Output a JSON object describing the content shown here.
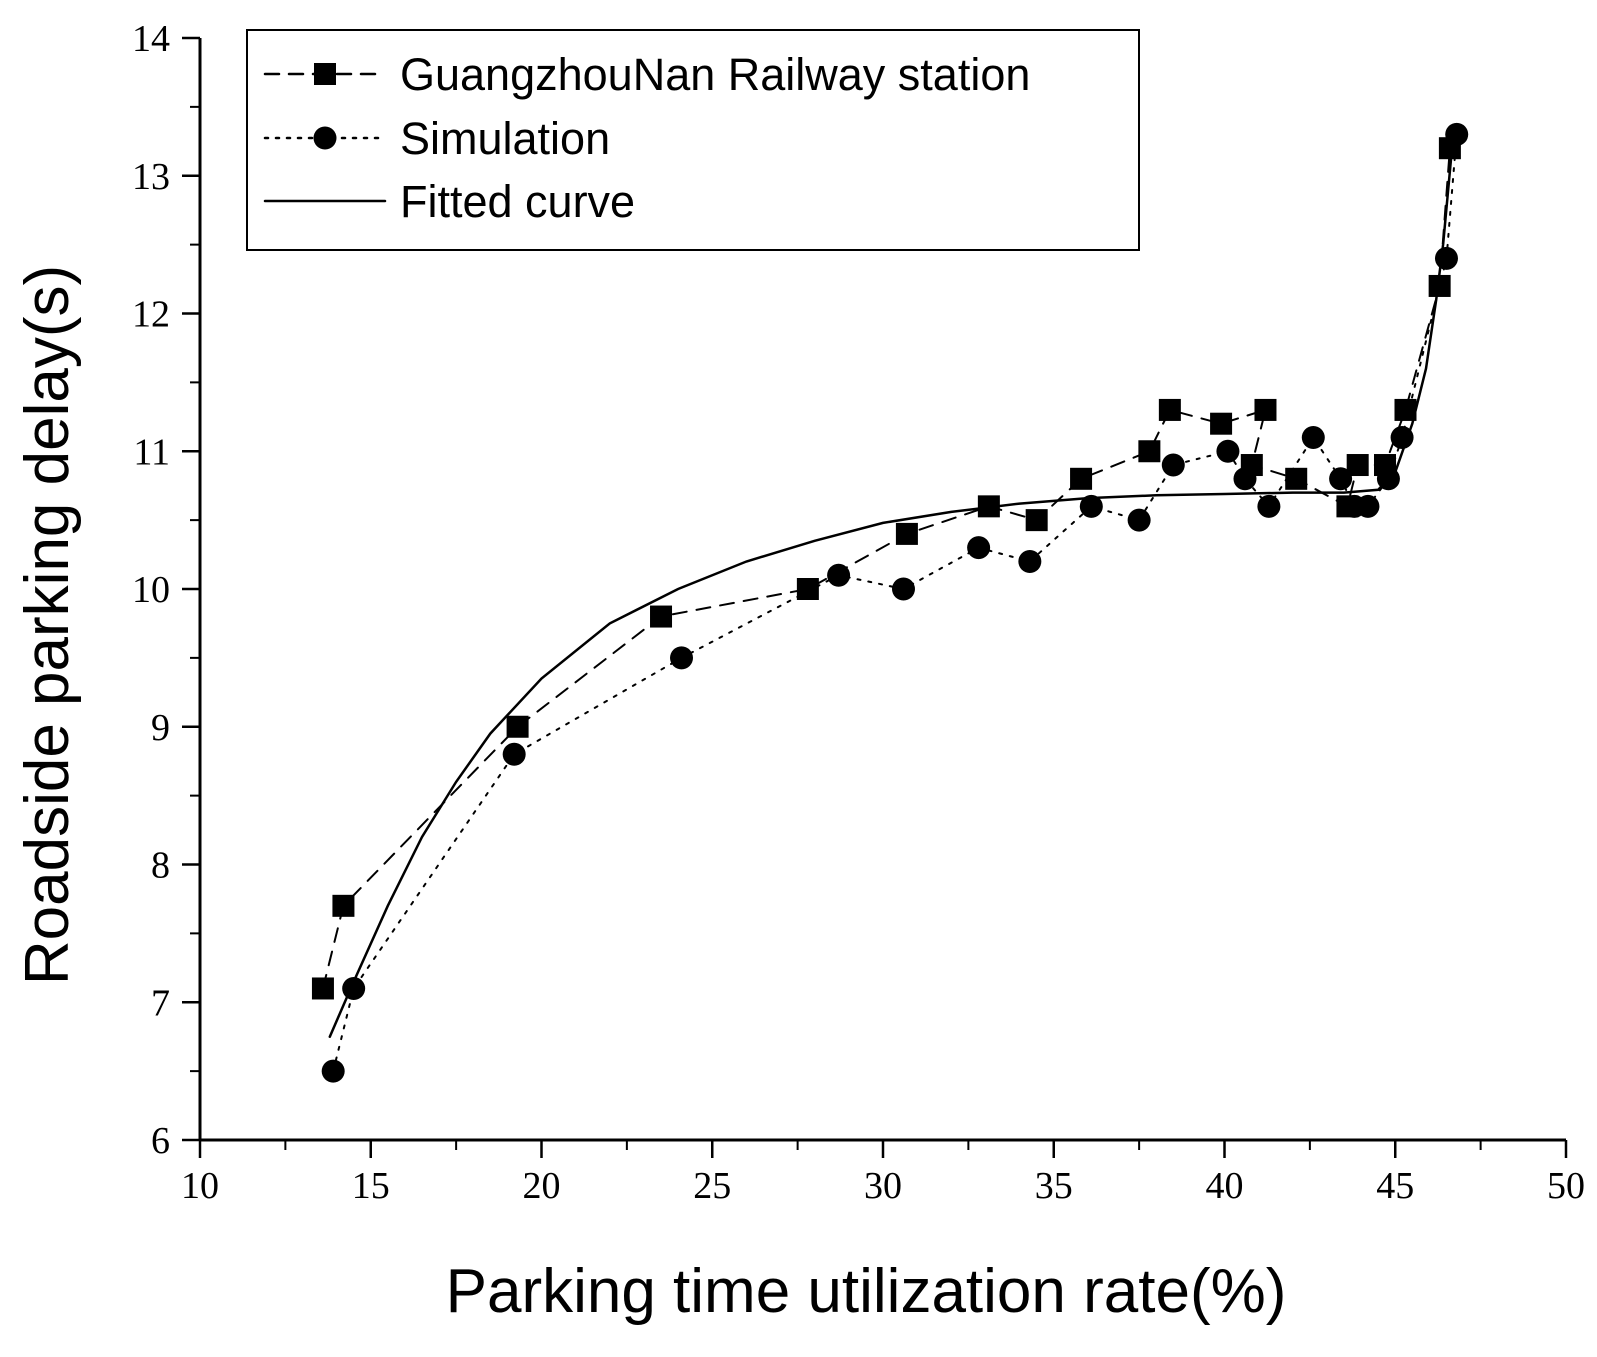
{
  "chart_data": {
    "type": "scatter",
    "title": "",
    "xlabel": "Parking time utilization rate(%)",
    "ylabel": "Roadside parking delay(s)",
    "xlim": [
      10,
      50
    ],
    "ylim": [
      6,
      14
    ],
    "x_major_ticks": [
      10,
      15,
      20,
      25,
      30,
      35,
      40,
      45,
      50
    ],
    "y_major_ticks": [
      6,
      7,
      8,
      9,
      10,
      11,
      12,
      13,
      14
    ],
    "grid": false,
    "legend_position": "top-left",
    "series": [
      {
        "name": "GuangzhouNan Railway station",
        "marker": "square",
        "line": "dashed",
        "points": [
          [
            13.6,
            7.1
          ],
          [
            14.2,
            7.7
          ],
          [
            19.3,
            9.0
          ],
          [
            23.5,
            9.8
          ],
          [
            27.8,
            10.0
          ],
          [
            30.7,
            10.4
          ],
          [
            33.1,
            10.6
          ],
          [
            34.5,
            10.5
          ],
          [
            35.8,
            10.8
          ],
          [
            37.8,
            11.0
          ],
          [
            38.4,
            11.3
          ],
          [
            39.9,
            11.2
          ],
          [
            41.2,
            11.3
          ],
          [
            40.8,
            10.9
          ],
          [
            42.1,
            10.8
          ],
          [
            43.6,
            10.6
          ],
          [
            43.9,
            10.9
          ],
          [
            44.7,
            10.9
          ],
          [
            45.3,
            11.3
          ],
          [
            46.3,
            12.2
          ],
          [
            46.6,
            13.2
          ]
        ]
      },
      {
        "name": "Simulation",
        "marker": "circle",
        "line": "dotted",
        "points": [
          [
            13.9,
            6.5
          ],
          [
            14.5,
            7.1
          ],
          [
            19.2,
            8.8
          ],
          [
            24.1,
            9.5
          ],
          [
            28.7,
            10.1
          ],
          [
            30.6,
            10.0
          ],
          [
            32.8,
            10.3
          ],
          [
            34.3,
            10.2
          ],
          [
            36.1,
            10.6
          ],
          [
            37.5,
            10.5
          ],
          [
            38.5,
            10.9
          ],
          [
            40.1,
            11.0
          ],
          [
            40.6,
            10.8
          ],
          [
            41.3,
            10.6
          ],
          [
            42.6,
            11.1
          ],
          [
            43.4,
            10.8
          ],
          [
            43.8,
            10.6
          ],
          [
            44.2,
            10.6
          ],
          [
            44.8,
            10.8
          ],
          [
            45.2,
            11.1
          ],
          [
            46.5,
            12.4
          ],
          [
            46.8,
            13.3
          ]
        ]
      },
      {
        "name": "Fitted curve",
        "marker": "none",
        "line": "solid",
        "points": [
          [
            13.8,
            6.75
          ],
          [
            14.5,
            7.15
          ],
          [
            15.5,
            7.7
          ],
          [
            16.5,
            8.2
          ],
          [
            17.5,
            8.6
          ],
          [
            18.5,
            8.95
          ],
          [
            20,
            9.35
          ],
          [
            22,
            9.75
          ],
          [
            24,
            10.0
          ],
          [
            26,
            10.2
          ],
          [
            28,
            10.35
          ],
          [
            30,
            10.48
          ],
          [
            32,
            10.56
          ],
          [
            34,
            10.62
          ],
          [
            36,
            10.66
          ],
          [
            38,
            10.68
          ],
          [
            40,
            10.69
          ],
          [
            42,
            10.7
          ],
          [
            43.5,
            10.7
          ],
          [
            44.5,
            10.72
          ],
          [
            45.0,
            10.85
          ],
          [
            45.5,
            11.2
          ],
          [
            45.9,
            11.6
          ],
          [
            46.2,
            12.1
          ],
          [
            46.4,
            12.5
          ],
          [
            46.55,
            12.9
          ],
          [
            46.7,
            13.3
          ]
        ]
      }
    ]
  }
}
